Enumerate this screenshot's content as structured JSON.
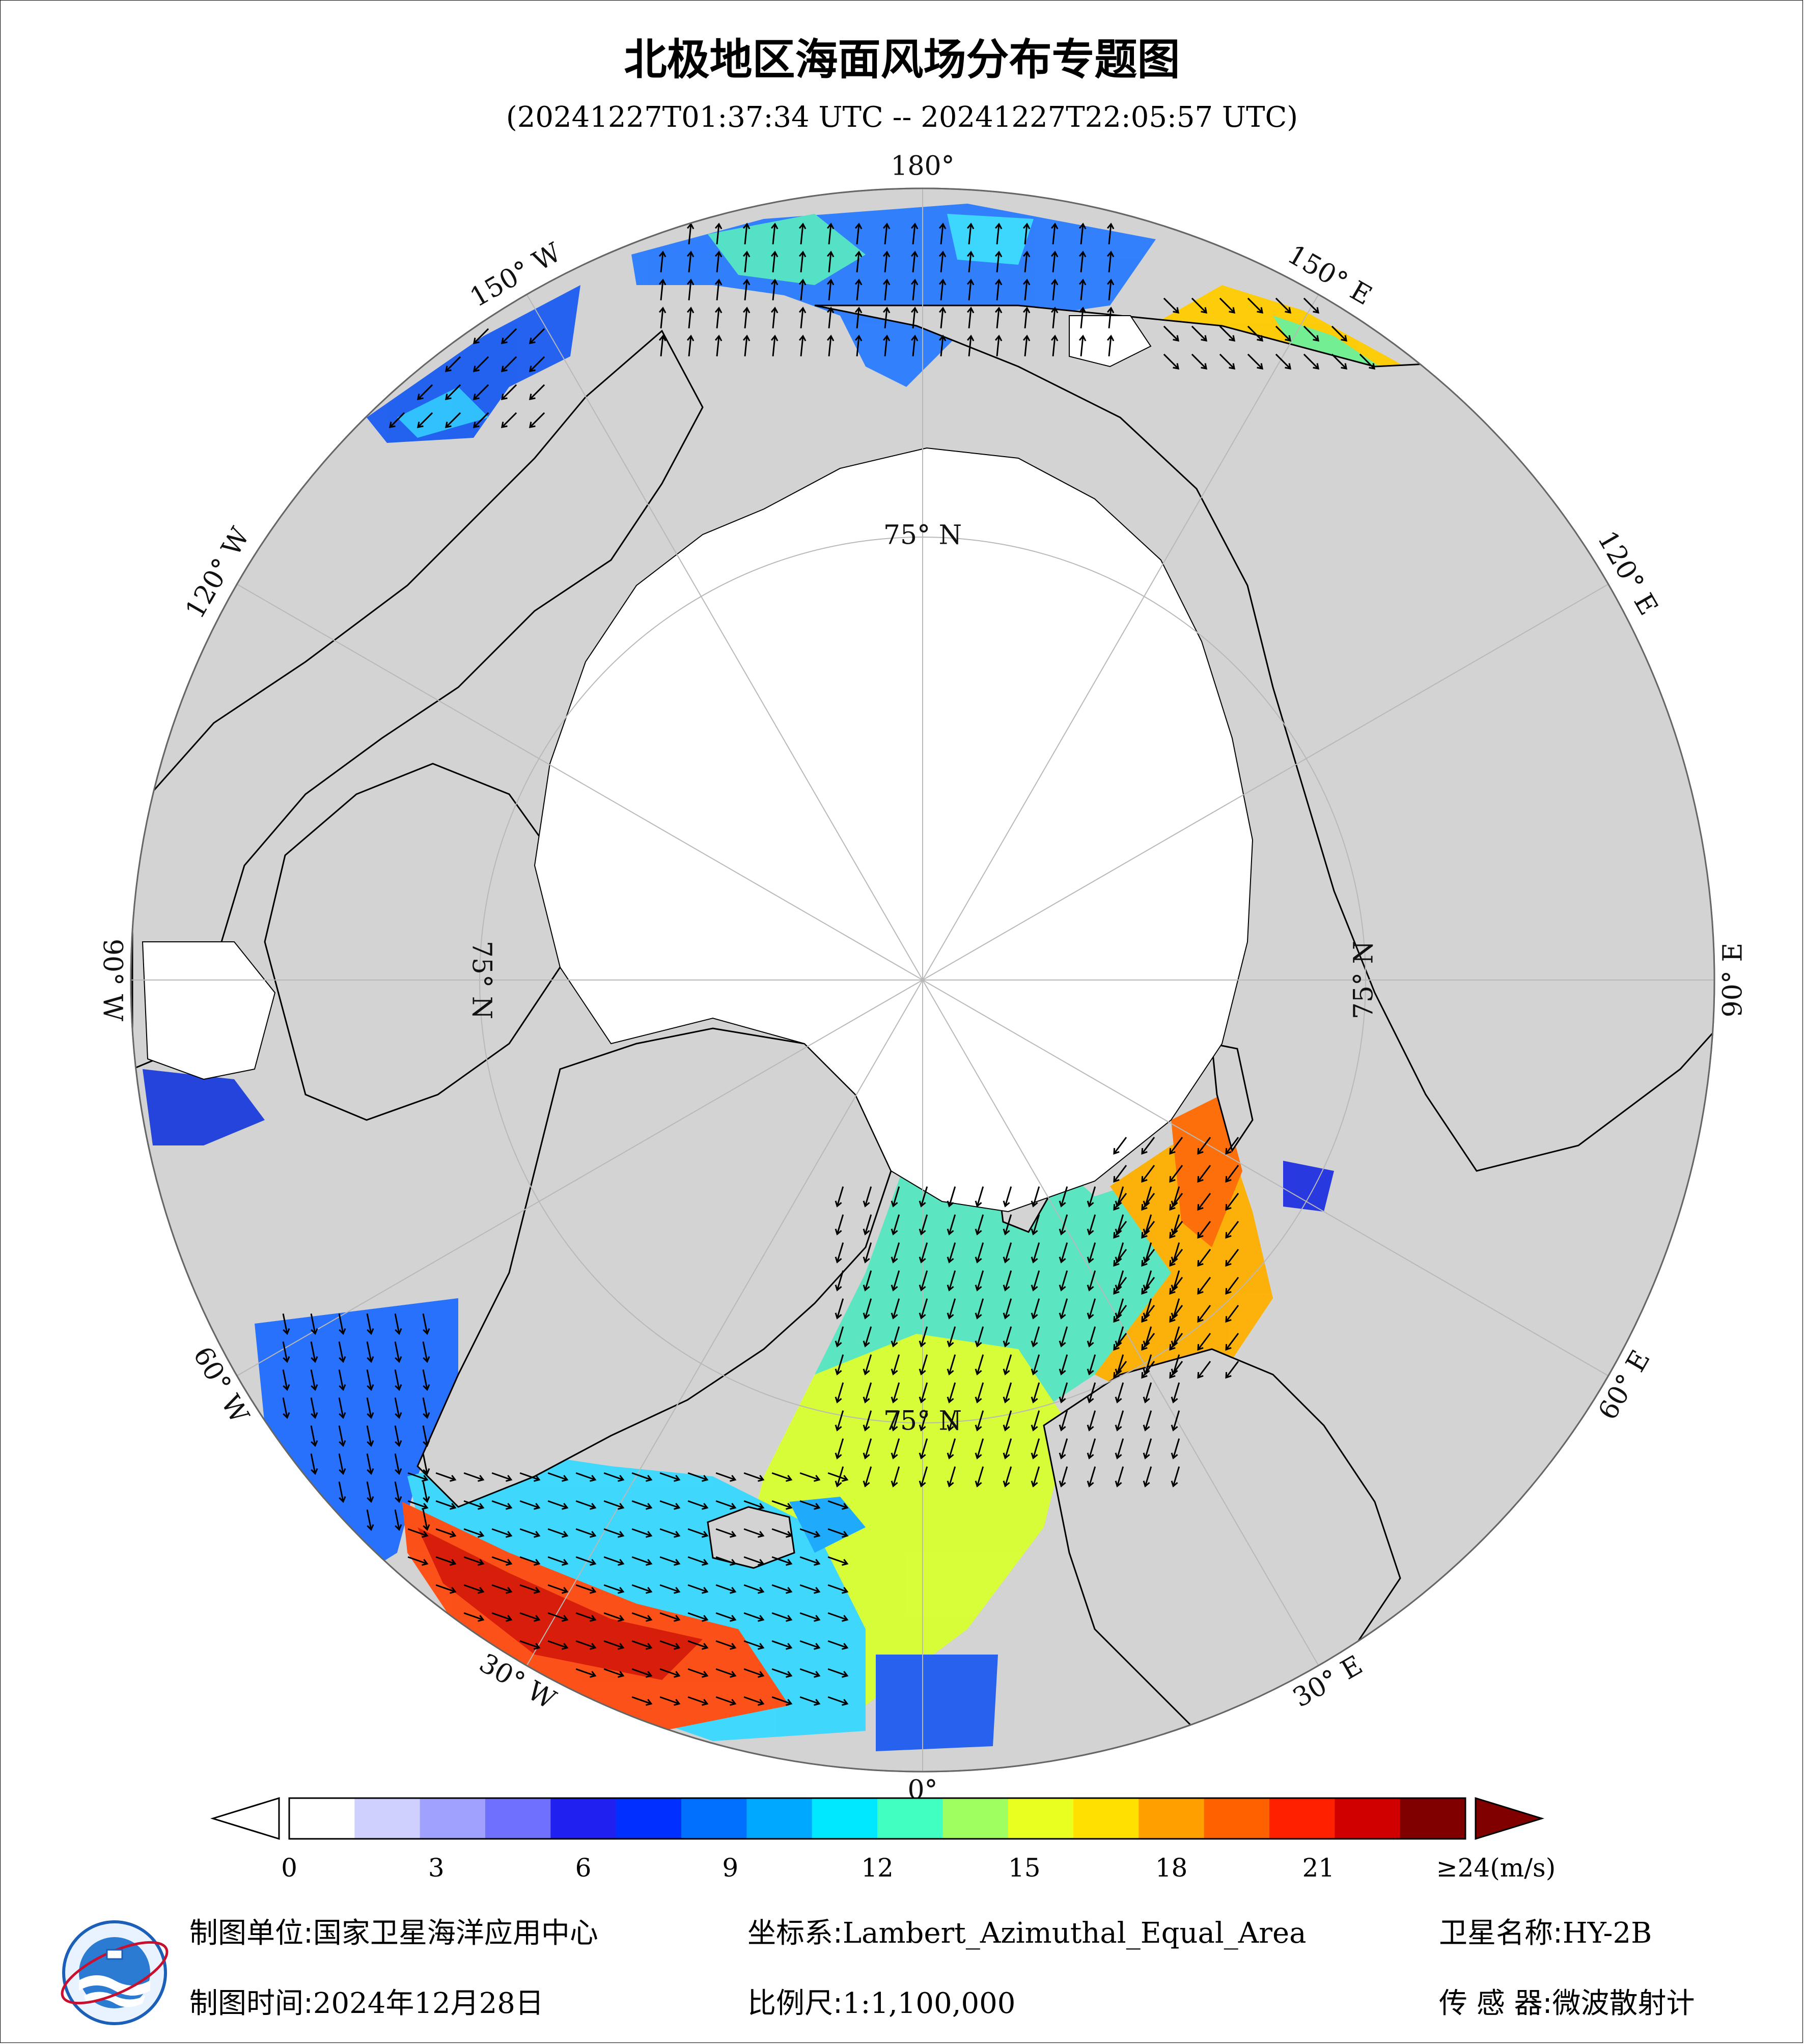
{
  "title": "北极地区海面风场分布专题图",
  "subtitle": "(20241227T01:37:34 UTC -- 20241227T22:05:57 UTC)",
  "map": {
    "projection_center": "North Pole",
    "meridian_labels": [
      {
        "text": "180°",
        "lon": 180
      },
      {
        "text": "150° E",
        "lon": 150
      },
      {
        "text": "120° E",
        "lon": 120
      },
      {
        "text": "90° E",
        "lon": 90
      },
      {
        "text": "60° E",
        "lon": 60
      },
      {
        "text": "30° E",
        "lon": 30
      },
      {
        "text": "0°",
        "lon": 0
      },
      {
        "text": "30° W",
        "lon": -30
      },
      {
        "text": "60° W",
        "lon": -60
      },
      {
        "text": "90° W",
        "lon": -90
      },
      {
        "text": "120° W",
        "lon": -120
      },
      {
        "text": "150° W",
        "lon": -150
      }
    ],
    "parallel_labels": [
      {
        "text": "75° N",
        "lon": 180
      },
      {
        "text": "75° N",
        "lon": 90
      },
      {
        "text": "75° N",
        "lon": 0
      },
      {
        "text": "75° N",
        "lon": -90
      }
    ],
    "colors": {
      "ocean_background": "#d3d3d3",
      "sea_ice": "#ffffff",
      "land": "#d3d3d3",
      "graticule": "#b8b8b8"
    }
  },
  "colorbar": {
    "unit": "(m/s)",
    "ticks": [
      "0",
      "3",
      "6",
      "9",
      "12",
      "15",
      "18",
      "21",
      "≥24(m/s)"
    ],
    "tick_values": [
      0,
      3,
      6,
      9,
      12,
      15,
      18,
      21,
      24
    ],
    "colors": [
      "#ffffff",
      "#d0d0ff",
      "#a0a0ff",
      "#7070ff",
      "#2020f0",
      "#0030ff",
      "#0070ff",
      "#00a8ff",
      "#00e8ff",
      "#40ffc0",
      "#a0ff60",
      "#e8ff20",
      "#ffe000",
      "#ffa000",
      "#ff6000",
      "#ff2000",
      "#d00000",
      "#800000"
    ]
  },
  "footer": {
    "unit_label": "制图单位:",
    "unit_value": "国家卫星海洋应用中心",
    "coord_label": "坐标系:",
    "coord_value": "Lambert_Azimuthal_Equal_Area",
    "satellite_label": "卫星名称:",
    "satellite_value": "HY-2B",
    "time_label": "制图时间:",
    "time_value": "2024年12月28日",
    "scale_label": "比例尺:",
    "scale_value": "1:1,100,000",
    "sensor_label": "传 感 器:",
    "sensor_value": "微波散射计"
  }
}
